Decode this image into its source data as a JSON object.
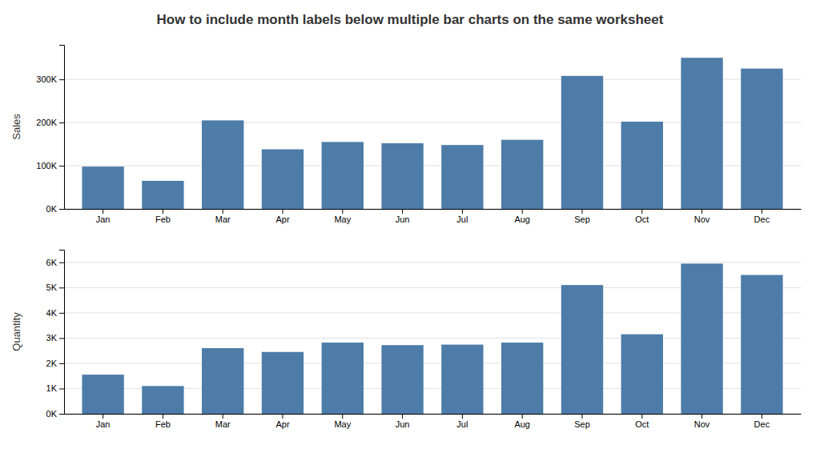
{
  "chart_data": [
    {
      "type": "bar",
      "title": "How to include month labels below multiple bar charts on the same worksheet",
      "ylabel": "Sales",
      "categories": [
        "Jan",
        "Feb",
        "Mar",
        "Apr",
        "May",
        "Jun",
        "Jul",
        "Aug",
        "Sep",
        "Oct",
        "Nov",
        "Dec"
      ],
      "values": [
        98000,
        65000,
        205000,
        138000,
        155000,
        152000,
        148000,
        160000,
        308000,
        202000,
        350000,
        325000
      ],
      "color": "#4d7ca8",
      "ylim": [
        0,
        380000
      ],
      "yticks": [
        {
          "value": 0,
          "label": "0K"
        },
        {
          "value": 100000,
          "label": "100K"
        },
        {
          "value": 200000,
          "label": "200K"
        },
        {
          "value": 300000,
          "label": "300K"
        }
      ],
      "grid": true
    },
    {
      "type": "bar",
      "ylabel": "Quantity",
      "categories": [
        "Jan",
        "Feb",
        "Mar",
        "Apr",
        "May",
        "Jun",
        "Jul",
        "Aug",
        "Sep",
        "Oct",
        "Nov",
        "Dec"
      ],
      "values": [
        1550,
        1100,
        2600,
        2450,
        2820,
        2720,
        2740,
        2820,
        5100,
        3150,
        5950,
        5500
      ],
      "color": "#4d7ca8",
      "ylim": [
        0,
        6500
      ],
      "yticks": [
        {
          "value": 0,
          "label": "0K"
        },
        {
          "value": 1000,
          "label": "1K"
        },
        {
          "value": 2000,
          "label": "2K"
        },
        {
          "value": 3000,
          "label": "3K"
        },
        {
          "value": 4000,
          "label": "4K"
        },
        {
          "value": 5000,
          "label": "5K"
        },
        {
          "value": 6000,
          "label": "6K"
        }
      ],
      "grid": true
    }
  ]
}
